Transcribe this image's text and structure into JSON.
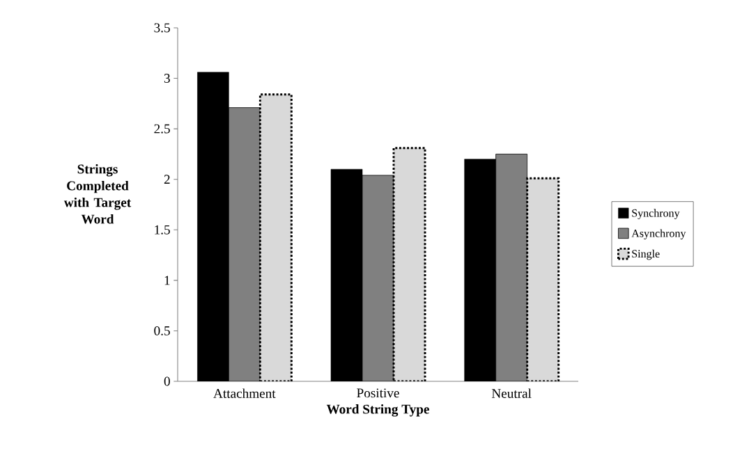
{
  "chart_data": {
    "type": "bar",
    "xlabel": "Word String Type",
    "ylabel": "Strings Completed with Target Word",
    "categories": [
      "Attachment",
      "Positive",
      "Neutral"
    ],
    "series": [
      {
        "name": "Synchrony",
        "color": "#000000",
        "values": [
          3.06,
          2.1,
          2.2
        ]
      },
      {
        "name": "Asynchrony",
        "color": "#808080",
        "values": [
          2.71,
          2.04,
          2.25
        ]
      },
      {
        "name": "Single",
        "color": "#d9d9d9",
        "values": [
          2.84,
          2.31,
          2.01
        ]
      }
    ],
    "ylim": [
      0,
      3.5
    ],
    "yticks": [
      0,
      0.5,
      1,
      1.5,
      2,
      2.5,
      3,
      3.5
    ],
    "grid": false,
    "legend": "right"
  }
}
